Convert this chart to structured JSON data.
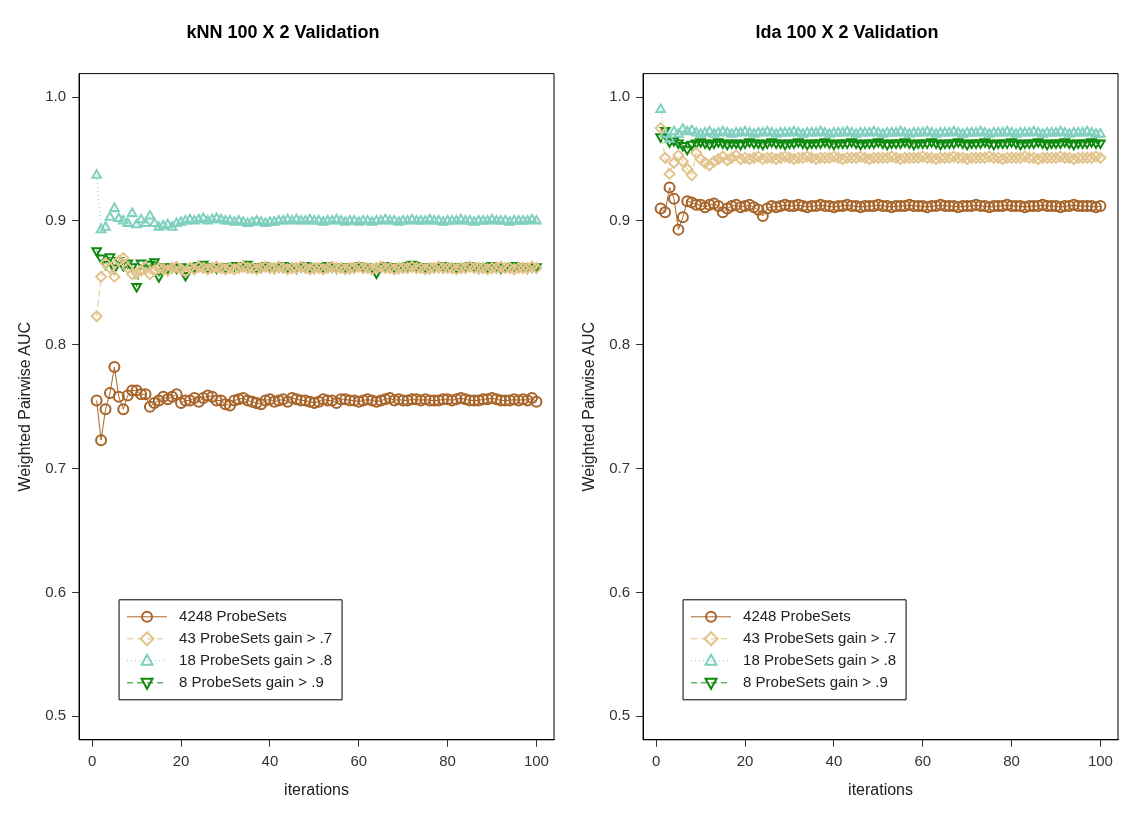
{
  "chart_data": [
    {
      "type": "line",
      "title": "kNN 100 X 2 Validation",
      "xlabel": "iterations",
      "ylabel": "Weighted Pairwise AUC",
      "x": [
        1,
        2,
        3,
        4,
        5,
        6,
        7,
        8,
        9,
        10,
        11,
        12,
        13,
        14,
        15,
        16,
        17,
        18,
        19,
        20,
        21,
        22,
        23,
        24,
        25,
        26,
        27,
        28,
        29,
        30,
        31,
        32,
        33,
        34,
        35,
        36,
        37,
        38,
        39,
        40,
        41,
        42,
        43,
        44,
        45,
        46,
        47,
        48,
        49,
        50,
        51,
        52,
        53,
        54,
        55,
        56,
        57,
        58,
        59,
        60,
        61,
        62,
        63,
        64,
        65,
        66,
        67,
        68,
        69,
        70,
        71,
        72,
        73,
        74,
        75,
        76,
        77,
        78,
        79,
        80,
        81,
        82,
        83,
        84,
        85,
        86,
        87,
        88,
        89,
        90,
        91,
        92,
        93,
        94,
        95,
        96,
        97,
        98,
        99,
        100
      ],
      "xlim": [
        -2.96,
        103.96
      ],
      "xticks": [
        0,
        20,
        40,
        60,
        80,
        100
      ],
      "ylim": [
        0.481,
        1.019
      ],
      "yticks": [
        0.5,
        0.6,
        0.7,
        0.8,
        0.9,
        {
          "value": 1,
          "label": "1.0"
        }
      ],
      "grid": false,
      "legend": "bottom",
      "series": [
        {
          "name": "4248 ProbeSets",
          "color": "#a8652a",
          "marker": "circle",
          "line_style": "solid",
          "values": [
            0.755,
            0.723,
            0.748,
            0.761,
            0.782,
            0.758,
            0.748,
            0.759,
            0.763,
            0.763,
            0.76,
            0.76,
            0.75,
            0.753,
            0.755,
            0.758,
            0.756,
            0.758,
            0.76,
            0.753,
            0.755,
            0.755,
            0.757,
            0.754,
            0.757,
            0.759,
            0.758,
            0.755,
            0.755,
            0.752,
            0.751,
            0.755,
            0.756,
            0.757,
            0.755,
            0.754,
            0.753,
            0.752,
            0.755,
            0.756,
            0.754,
            0.755,
            0.756,
            0.754,
            0.757,
            0.756,
            0.755,
            0.755,
            0.754,
            0.753,
            0.754,
            0.756,
            0.755,
            0.755,
            0.753,
            0.756,
            0.756,
            0.755,
            0.755,
            0.754,
            0.755,
            0.756,
            0.755,
            0.754,
            0.755,
            0.756,
            0.757,
            0.755,
            0.756,
            0.755,
            0.755,
            0.756,
            0.756,
            0.755,
            0.756,
            0.755,
            0.755,
            0.755,
            0.756,
            0.756,
            0.755,
            0.756,
            0.757,
            0.756,
            0.755,
            0.755,
            0.755,
            0.756,
            0.756,
            0.757,
            0.756,
            0.755,
            0.755,
            0.755,
            0.756,
            0.755,
            0.756,
            0.755,
            0.757,
            0.754
          ]
        },
        {
          "name": "43 ProbeSets gain > .7",
          "color": "#e2c48c",
          "marker": "diamond",
          "line_style": "dashed",
          "values": [
            0.823,
            0.855,
            0.866,
            0.862,
            0.855,
            0.868,
            0.87,
            0.862,
            0.857,
            0.858,
            0.86,
            0.863,
            0.857,
            0.86,
            0.862,
            0.861,
            0.86,
            0.862,
            0.863,
            0.861,
            0.859,
            0.862,
            0.861,
            0.863,
            0.862,
            0.861,
            0.862,
            0.863,
            0.862,
            0.861,
            0.862,
            0.861,
            0.862,
            0.863,
            0.862,
            0.862,
            0.861,
            0.862,
            0.863,
            0.862,
            0.862,
            0.863,
            0.862,
            0.861,
            0.862,
            0.862,
            0.863,
            0.862,
            0.861,
            0.862,
            0.862,
            0.861,
            0.862,
            0.863,
            0.862,
            0.862,
            0.861,
            0.862,
            0.862,
            0.863,
            0.862,
            0.862,
            0.861,
            0.862,
            0.863,
            0.862,
            0.862,
            0.861,
            0.862,
            0.862,
            0.862,
            0.863,
            0.862,
            0.862,
            0.861,
            0.862,
            0.862,
            0.863,
            0.862,
            0.862,
            0.862,
            0.861,
            0.862,
            0.862,
            0.863,
            0.862,
            0.862,
            0.862,
            0.861,
            0.862,
            0.862,
            0.863,
            0.862,
            0.862,
            0.861,
            0.862,
            0.862,
            0.862,
            0.863,
            0.862
          ]
        },
        {
          "name": "18 ProbeSets gain > .8",
          "color": "#80d0c0",
          "marker": "triangle",
          "line_style": "dotted",
          "values": [
            0.937,
            0.893,
            0.895,
            0.903,
            0.91,
            0.902,
            0.9,
            0.898,
            0.906,
            0.897,
            0.901,
            0.898,
            0.904,
            0.898,
            0.895,
            0.896,
            0.897,
            0.895,
            0.898,
            0.899,
            0.9,
            0.901,
            0.9,
            0.901,
            0.902,
            0.9,
            0.901,
            0.902,
            0.901,
            0.9,
            0.9,
            0.899,
            0.9,
            0.899,
            0.898,
            0.899,
            0.9,
            0.899,
            0.898,
            0.899,
            0.899,
            0.9,
            0.9,
            0.901,
            0.9,
            0.901,
            0.9,
            0.9,
            0.901,
            0.9,
            0.9,
            0.899,
            0.9,
            0.9,
            0.901,
            0.9,
            0.899,
            0.9,
            0.9,
            0.899,
            0.9,
            0.9,
            0.899,
            0.9,
            0.9,
            0.901,
            0.9,
            0.9,
            0.899,
            0.9,
            0.9,
            0.901,
            0.9,
            0.9,
            0.9,
            0.901,
            0.9,
            0.9,
            0.899,
            0.9,
            0.9,
            0.9,
            0.901,
            0.9,
            0.9,
            0.899,
            0.9,
            0.9,
            0.9,
            0.901,
            0.9,
            0.9,
            0.9,
            0.899,
            0.9,
            0.9,
            0.9,
            0.9,
            0.901,
            0.9
          ]
        },
        {
          "name": "8 ProbeSets gain > .9",
          "color": "#0f8a0f",
          "marker": "triangle-down",
          "line_style": "dashed",
          "values": [
            0.876,
            0.87,
            0.865,
            0.871,
            0.862,
            0.868,
            0.864,
            0.866,
            0.863,
            0.847,
            0.866,
            0.862,
            0.865,
            0.867,
            0.855,
            0.863,
            0.862,
            0.863,
            0.862,
            0.863,
            0.856,
            0.862,
            0.863,
            0.864,
            0.865,
            0.862,
            0.863,
            0.862,
            0.863,
            0.862,
            0.863,
            0.864,
            0.863,
            0.864,
            0.865,
            0.863,
            0.862,
            0.863,
            0.864,
            0.863,
            0.862,
            0.863,
            0.864,
            0.863,
            0.863,
            0.862,
            0.863,
            0.864,
            0.863,
            0.862,
            0.863,
            0.863,
            0.864,
            0.863,
            0.862,
            0.863,
            0.863,
            0.862,
            0.863,
            0.864,
            0.863,
            0.863,
            0.862,
            0.858,
            0.863,
            0.864,
            0.863,
            0.863,
            0.862,
            0.863,
            0.864,
            0.865,
            0.864,
            0.863,
            0.863,
            0.862,
            0.863,
            0.863,
            0.864,
            0.863,
            0.863,
            0.862,
            0.863,
            0.863,
            0.864,
            0.863,
            0.862,
            0.863,
            0.863,
            0.864,
            0.863,
            0.862,
            0.863,
            0.863,
            0.864,
            0.863,
            0.863,
            0.862,
            0.863,
            0.863
          ]
        }
      ]
    },
    {
      "type": "line",
      "title": "lda 100 X 2 Validation",
      "xlabel": "iterations",
      "ylabel": "Weighted Pairwise AUC",
      "x": [
        1,
        2,
        3,
        4,
        5,
        6,
        7,
        8,
        9,
        10,
        11,
        12,
        13,
        14,
        15,
        16,
        17,
        18,
        19,
        20,
        21,
        22,
        23,
        24,
        25,
        26,
        27,
        28,
        29,
        30,
        31,
        32,
        33,
        34,
        35,
        36,
        37,
        38,
        39,
        40,
        41,
        42,
        43,
        44,
        45,
        46,
        47,
        48,
        49,
        50,
        51,
        52,
        53,
        54,
        55,
        56,
        57,
        58,
        59,
        60,
        61,
        62,
        63,
        64,
        65,
        66,
        67,
        68,
        69,
        70,
        71,
        72,
        73,
        74,
        75,
        76,
        77,
        78,
        79,
        80,
        81,
        82,
        83,
        84,
        85,
        86,
        87,
        88,
        89,
        90,
        91,
        92,
        93,
        94,
        95,
        96,
        97,
        98,
        99,
        100
      ],
      "xlim": [
        -2.96,
        103.96
      ],
      "xticks": [
        0,
        20,
        40,
        60,
        80,
        100
      ],
      "ylim": [
        0.481,
        1.019
      ],
      "yticks": [
        0.5,
        0.6,
        0.7,
        0.8,
        0.9,
        {
          "value": 1,
          "label": "1.0"
        }
      ],
      "grid": false,
      "legend": "bottom",
      "series": [
        {
          "name": "4248 ProbeSets",
          "color": "#a8652a",
          "marker": "circle",
          "line_style": "solid",
          "values": [
            0.91,
            0.907,
            0.927,
            0.918,
            0.893,
            0.903,
            0.916,
            0.915,
            0.913,
            0.913,
            0.911,
            0.913,
            0.914,
            0.912,
            0.907,
            0.91,
            0.912,
            0.913,
            0.911,
            0.912,
            0.913,
            0.911,
            0.909,
            0.904,
            0.91,
            0.912,
            0.911,
            0.912,
            0.913,
            0.912,
            0.912,
            0.913,
            0.912,
            0.911,
            0.912,
            0.912,
            0.913,
            0.912,
            0.912,
            0.911,
            0.912,
            0.912,
            0.913,
            0.912,
            0.912,
            0.911,
            0.912,
            0.912,
            0.912,
            0.913,
            0.912,
            0.912,
            0.911,
            0.912,
            0.912,
            0.912,
            0.913,
            0.912,
            0.912,
            0.912,
            0.911,
            0.912,
            0.912,
            0.913,
            0.912,
            0.912,
            0.912,
            0.911,
            0.912,
            0.912,
            0.912,
            0.913,
            0.912,
            0.912,
            0.911,
            0.912,
            0.912,
            0.912,
            0.913,
            0.912,
            0.912,
            0.912,
            0.911,
            0.912,
            0.912,
            0.912,
            0.913,
            0.912,
            0.912,
            0.912,
            0.911,
            0.912,
            0.912,
            0.913,
            0.912,
            0.912,
            0.912,
            0.912,
            0.911,
            0.912
          ]
        },
        {
          "name": "43 ProbeSets gain > .7",
          "color": "#e2c48c",
          "marker": "diamond",
          "line_style": "dashed",
          "values": [
            0.975,
            0.951,
            0.938,
            0.947,
            0.953,
            0.948,
            0.942,
            0.937,
            0.955,
            0.95,
            0.947,
            0.945,
            0.948,
            0.95,
            0.952,
            0.949,
            0.951,
            0.953,
            0.95,
            0.951,
            0.95,
            0.951,
            0.952,
            0.95,
            0.951,
            0.951,
            0.95,
            0.951,
            0.952,
            0.951,
            0.95,
            0.951,
            0.951,
            0.952,
            0.951,
            0.95,
            0.951,
            0.951,
            0.951,
            0.952,
            0.951,
            0.95,
            0.951,
            0.951,
            0.951,
            0.952,
            0.951,
            0.95,
            0.951,
            0.951,
            0.951,
            0.951,
            0.952,
            0.951,
            0.95,
            0.951,
            0.951,
            0.951,
            0.951,
            0.952,
            0.951,
            0.951,
            0.95,
            0.951,
            0.951,
            0.951,
            0.952,
            0.951,
            0.951,
            0.95,
            0.951,
            0.951,
            0.951,
            0.951,
            0.952,
            0.951,
            0.951,
            0.95,
            0.951,
            0.951,
            0.951,
            0.951,
            0.952,
            0.951,
            0.951,
            0.95,
            0.951,
            0.951,
            0.951,
            0.951,
            0.952,
            0.951,
            0.951,
            0.95,
            0.951,
            0.951,
            0.951,
            0.951,
            0.952,
            0.951
          ]
        },
        {
          "name": "18 ProbeSets gain > .8",
          "color": "#80d0c0",
          "marker": "triangle",
          "line_style": "dotted",
          "values": [
            0.99,
            0.97,
            0.966,
            0.972,
            0.97,
            0.974,
            0.972,
            0.973,
            0.971,
            0.97,
            0.971,
            0.972,
            0.97,
            0.971,
            0.972,
            0.971,
            0.97,
            0.971,
            0.971,
            0.972,
            0.971,
            0.97,
            0.971,
            0.971,
            0.972,
            0.971,
            0.97,
            0.971,
            0.971,
            0.971,
            0.972,
            0.971,
            0.97,
            0.971,
            0.971,
            0.971,
            0.972,
            0.971,
            0.97,
            0.971,
            0.971,
            0.971,
            0.972,
            0.971,
            0.97,
            0.971,
            0.971,
            0.971,
            0.972,
            0.971,
            0.97,
            0.971,
            0.971,
            0.971,
            0.972,
            0.971,
            0.97,
            0.971,
            0.971,
            0.971,
            0.972,
            0.971,
            0.97,
            0.971,
            0.971,
            0.971,
            0.972,
            0.971,
            0.97,
            0.971,
            0.971,
            0.971,
            0.972,
            0.971,
            0.97,
            0.971,
            0.971,
            0.971,
            0.972,
            0.971,
            0.97,
            0.971,
            0.971,
            0.971,
            0.972,
            0.971,
            0.97,
            0.971,
            0.971,
            0.971,
            0.972,
            0.971,
            0.97,
            0.971,
            0.971,
            0.971,
            0.972,
            0.971,
            0.97,
            0.97
          ]
        },
        {
          "name": "8 ProbeSets gain > .9",
          "color": "#0f8a0f",
          "marker": "triangle-down",
          "line_style": "dashed",
          "values": [
            0.968,
            0.973,
            0.964,
            0.965,
            0.963,
            0.961,
            0.958,
            0.962,
            0.963,
            0.964,
            0.963,
            0.962,
            0.963,
            0.964,
            0.963,
            0.962,
            0.963,
            0.963,
            0.962,
            0.963,
            0.964,
            0.963,
            0.963,
            0.962,
            0.963,
            0.964,
            0.963,
            0.963,
            0.962,
            0.963,
            0.963,
            0.964,
            0.963,
            0.962,
            0.963,
            0.963,
            0.963,
            0.964,
            0.963,
            0.962,
            0.963,
            0.963,
            0.963,
            0.964,
            0.963,
            0.962,
            0.963,
            0.963,
            0.963,
            0.964,
            0.963,
            0.962,
            0.963,
            0.963,
            0.963,
            0.964,
            0.963,
            0.962,
            0.963,
            0.963,
            0.963,
            0.964,
            0.963,
            0.962,
            0.963,
            0.963,
            0.963,
            0.964,
            0.963,
            0.962,
            0.963,
            0.963,
            0.963,
            0.964,
            0.963,
            0.962,
            0.963,
            0.963,
            0.963,
            0.964,
            0.963,
            0.962,
            0.963,
            0.963,
            0.963,
            0.964,
            0.963,
            0.962,
            0.963,
            0.963,
            0.963,
            0.964,
            0.963,
            0.962,
            0.963,
            0.963,
            0.963,
            0.964,
            0.963,
            0.963
          ]
        }
      ]
    }
  ]
}
